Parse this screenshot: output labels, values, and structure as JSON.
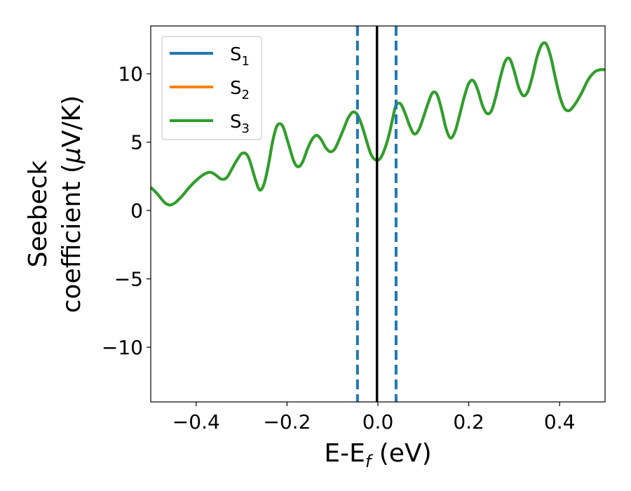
{
  "chart_data": {
    "type": "line",
    "xlabel": {
      "main": "E-E",
      "subscript": "f",
      "rest": " (eV)"
    },
    "ylabel": {
      "line1": "Seebeck",
      "line2_prefix": "coefficient  (",
      "line2_greek": "μ",
      "line2_suffix": "V/K)"
    },
    "xlim": [
      -0.5,
      0.5
    ],
    "ylim": [
      -14,
      13.5
    ],
    "xticks": [
      -0.4,
      -0.2,
      0.0,
      0.2,
      0.4
    ],
    "xtick_labels": [
      "−0.4",
      "−0.2",
      "0.0",
      "0.2",
      "0.4"
    ],
    "yticks": [
      -10,
      -5,
      0,
      5,
      10
    ],
    "ytick_labels": [
      "−10",
      "−5",
      "0",
      "5",
      "10"
    ],
    "grid": false,
    "legend_position": "top-left",
    "vlines": [
      {
        "x": -0.045,
        "style": "dashed",
        "color": "#1f77b4"
      },
      {
        "x": 0.04,
        "style": "dashed",
        "color": "#1f77b4"
      },
      {
        "x": -0.002,
        "style": "solid",
        "color": "#000000"
      }
    ],
    "series": [
      {
        "name": "S",
        "sub": "1",
        "color": "#1f77b4"
      },
      {
        "name": "S",
        "sub": "2",
        "color": "#ff7f0e"
      },
      {
        "name": "S",
        "sub": "3",
        "color": "#2ca02c"
      }
    ],
    "x": [
      -0.5,
      -0.485,
      -0.47,
      -0.458,
      -0.445,
      -0.43,
      -0.415,
      -0.4,
      -0.385,
      -0.37,
      -0.357,
      -0.345,
      -0.333,
      -0.322,
      -0.31,
      -0.298,
      -0.285,
      -0.27,
      -0.26,
      -0.25,
      -0.24,
      -0.232,
      -0.222,
      -0.21,
      -0.198,
      -0.185,
      -0.175,
      -0.165,
      -0.155,
      -0.145,
      -0.135,
      -0.125,
      -0.115,
      -0.105,
      -0.095,
      -0.085,
      -0.075,
      -0.065,
      -0.055,
      -0.045,
      -0.035,
      -0.025,
      -0.015,
      -0.005,
      0.005,
      0.015,
      0.025,
      0.033,
      0.04,
      0.05,
      0.06,
      0.07,
      0.08,
      0.09,
      0.1,
      0.11,
      0.12,
      0.13,
      0.14,
      0.15,
      0.16,
      0.17,
      0.18,
      0.19,
      0.2,
      0.21,
      0.22,
      0.23,
      0.24,
      0.25,
      0.26,
      0.27,
      0.28,
      0.29,
      0.3,
      0.31,
      0.32,
      0.33,
      0.34,
      0.35,
      0.36,
      0.37,
      0.38,
      0.39,
      0.4,
      0.41,
      0.42,
      0.43,
      0.44,
      0.45,
      0.46,
      0.47,
      0.48,
      0.49,
      0.5
    ],
    "y": [
      1.7,
      1.2,
      0.6,
      0.4,
      0.6,
      1.1,
      1.7,
      2.2,
      2.6,
      2.8,
      2.6,
      2.3,
      2.4,
      3.0,
      3.7,
      4.2,
      3.9,
      2.3,
      1.5,
      2.0,
      3.5,
      5.0,
      6.2,
      6.2,
      5.0,
      3.6,
      3.2,
      3.6,
      4.5,
      5.2,
      5.5,
      5.2,
      4.6,
      4.3,
      4.5,
      5.2,
      6.0,
      6.8,
      7.2,
      7.0,
      6.2,
      5.1,
      4.1,
      3.7,
      3.8,
      4.5,
      5.6,
      6.8,
      7.7,
      7.8,
      7.1,
      6.2,
      5.6,
      5.9,
      6.8,
      7.8,
      8.6,
      8.5,
      7.4,
      6.0,
      5.3,
      5.8,
      7.0,
      8.3,
      9.3,
      9.5,
      8.8,
      7.7,
      7.1,
      7.3,
      8.4,
      9.8,
      10.9,
      11.1,
      10.2,
      9.0,
      8.4,
      8.7,
      9.8,
      11.2,
      12.1,
      12.2,
      11.3,
      9.8,
      8.4,
      7.5,
      7.3,
      7.6,
      8.1,
      8.7,
      9.4,
      9.9,
      10.2,
      10.3,
      10.3
    ]
  }
}
